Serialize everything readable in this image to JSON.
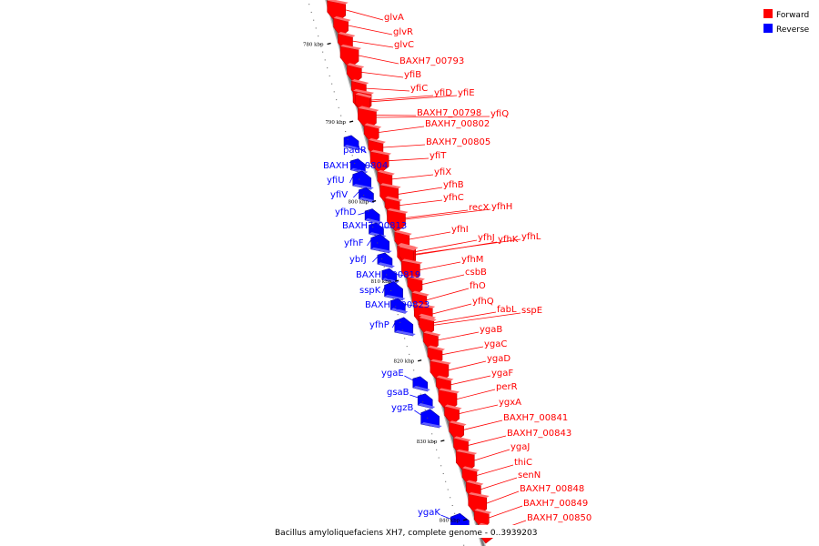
{
  "caption": "Bacillus amyloliquefaciens XH7, complete genome - 0..3939203",
  "legend": [
    {
      "label": "Forward",
      "color": "#ff0000"
    },
    {
      "label": "Reverse",
      "color": "#0000ff"
    }
  ],
  "colors": {
    "forward": "#ff0000",
    "reverse": "#0000ff",
    "axis": "#808080"
  },
  "kbp_ticks": [
    {
      "label": "780 kbp",
      "t": 0.089
    },
    {
      "label": "790 kbp",
      "t": 0.229
    },
    {
      "label": "800 kbp",
      "t": 0.372
    },
    {
      "label": "810 kbp",
      "t": 0.515
    },
    {
      "label": "820 kbp",
      "t": 0.658
    },
    {
      "label": "830 kbp",
      "t": 0.802
    },
    {
      "label": "840 kbp",
      "t": 0.944
    }
  ],
  "genes": [
    {
      "name": "glvA",
      "strand": "+",
      "t": 0.021
    },
    {
      "name": "glvR",
      "strand": "+",
      "t": 0.049
    },
    {
      "name": "glvC",
      "strand": "+",
      "t": 0.077
    },
    {
      "name": "BAXH7_00793",
      "strand": "+",
      "t": 0.103
    },
    {
      "name": "yfiB",
      "strand": "+",
      "t": 0.133
    },
    {
      "name": "yfiC",
      "strand": "+",
      "t": 0.162
    },
    {
      "name": "yfiD",
      "strand": "+",
      "t": 0.183
    },
    {
      "name": "yfiE",
      "strand": "+",
      "t": 0.186
    },
    {
      "name": "BAXH7_00798",
      "strand": "+",
      "t": 0.21
    },
    {
      "name": "yfiQ",
      "strand": "+",
      "t": 0.214
    },
    {
      "name": "BAXH7_00802",
      "strand": "+",
      "t": 0.241
    },
    {
      "name": "BAXH7_00805",
      "strand": "+",
      "t": 0.268
    },
    {
      "name": "yfiT",
      "strand": "+",
      "t": 0.292
    },
    {
      "name": "padR",
      "strand": "-",
      "t": 0.263
    },
    {
      "name": "BAXH7_00804",
      "strand": "-",
      "t": 0.305
    },
    {
      "name": "yfiU",
      "strand": "-",
      "t": 0.33
    },
    {
      "name": "yfiV",
      "strand": "-",
      "t": 0.357
    },
    {
      "name": "yfiX",
      "strand": "+",
      "t": 0.325
    },
    {
      "name": "yfhB",
      "strand": "+",
      "t": 0.352
    },
    {
      "name": "yfhC",
      "strand": "+",
      "t": 0.372
    },
    {
      "name": "recX",
      "strand": "+",
      "t": 0.395
    },
    {
      "name": "yfhH",
      "strand": "+",
      "t": 0.397
    },
    {
      "name": "yfhD",
      "strand": "-",
      "t": 0.395
    },
    {
      "name": "BAXH7_00813",
      "strand": "-",
      "t": 0.42
    },
    {
      "name": "yfhF",
      "strand": "-",
      "t": 0.444
    },
    {
      "name": "yfhI",
      "strand": "+",
      "t": 0.433
    },
    {
      "name": "yfhJ",
      "strand": "+",
      "t": 0.456
    },
    {
      "name": "yfhK",
      "strand": "+",
      "t": 0.461
    },
    {
      "name": "yfhL",
      "strand": "+",
      "t": 0.46
    },
    {
      "name": "ybfJ",
      "strand": "-",
      "t": 0.474
    },
    {
      "name": "yfhM",
      "strand": "+",
      "t": 0.488
    },
    {
      "name": "BAXH7_00819",
      "strand": "-",
      "t": 0.502
    },
    {
      "name": "csbB",
      "strand": "+",
      "t": 0.514
    },
    {
      "name": "sspK",
      "strand": "-",
      "t": 0.529
    },
    {
      "name": "fhO",
      "strand": "+",
      "t": 0.542
    },
    {
      "name": "BAXH7_00823",
      "strand": "-",
      "t": 0.556
    },
    {
      "name": "yfhQ",
      "strand": "+",
      "t": 0.567
    },
    {
      "name": "fabL",
      "strand": "+",
      "t": 0.583
    },
    {
      "name": "sspE",
      "strand": "+",
      "t": 0.587
    },
    {
      "name": "yfhP",
      "strand": "-",
      "t": 0.593
    },
    {
      "name": "ygaB",
      "strand": "+",
      "t": 0.614
    },
    {
      "name": "ygaC",
      "strand": "+",
      "t": 0.64
    },
    {
      "name": "ygaD",
      "strand": "+",
      "t": 0.668
    },
    {
      "name": "ygaE",
      "strand": "-",
      "t": 0.696
    },
    {
      "name": "ygaF",
      "strand": "+",
      "t": 0.694
    },
    {
      "name": "perR",
      "strand": "+",
      "t": 0.72
    },
    {
      "name": "gsaB",
      "strand": "-",
      "t": 0.727
    },
    {
      "name": "ygxA",
      "strand": "+",
      "t": 0.746
    },
    {
      "name": "ygzB",
      "strand": "-",
      "t": 0.758
    },
    {
      "name": "BAXH7_00841",
      "strand": "+",
      "t": 0.775
    },
    {
      "name": "BAXH7_00843",
      "strand": "+",
      "t": 0.803
    },
    {
      "name": "ygaJ",
      "strand": "+",
      "t": 0.83
    },
    {
      "name": "thiC",
      "strand": "+",
      "t": 0.857
    },
    {
      "name": "senN",
      "strand": "+",
      "t": 0.882
    },
    {
      "name": "BAXH7_00848",
      "strand": "+",
      "t": 0.907
    },
    {
      "name": "BAXH7_00849",
      "strand": "+",
      "t": 0.933
    },
    {
      "name": "BAXH7_00850",
      "strand": "+",
      "t": 0.959
    },
    {
      "name": "ygaK",
      "strand": "-",
      "t": 0.945
    }
  ]
}
